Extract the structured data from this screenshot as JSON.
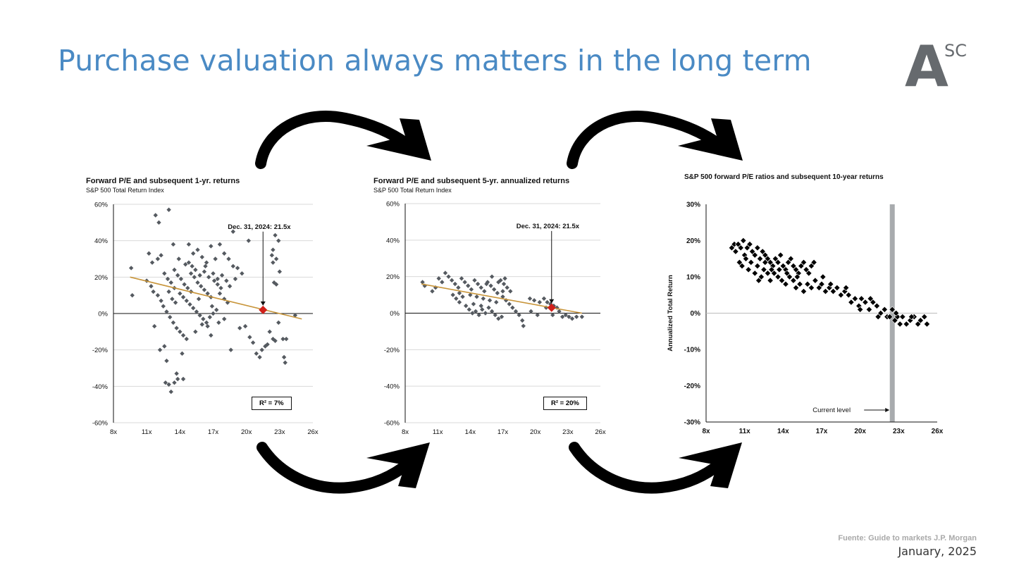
{
  "slide": {
    "title": "Purchase valuation always matters in the long term",
    "logo_letter": "A",
    "logo_superscript": "SC",
    "source": "Fuente: Guide to markets J.P. Morgan",
    "date": "January, 2025",
    "colors": {
      "title": "#4a8ac4",
      "logo": "#666a6e",
      "points_grey": "#555a60",
      "regression": "#c8953a",
      "highlight": "#d0201a",
      "current_band": "#a8abae"
    }
  },
  "chart_data": [
    {
      "type": "scatter",
      "title": "Forward P/E and subsequent 1-yr. returns",
      "subtitle": "S&P 500 Total Return Index",
      "xlabel": "",
      "ylabel": "",
      "x_ticks": [
        "8x",
        "11x",
        "14x",
        "17x",
        "20x",
        "23x",
        "26x"
      ],
      "y_ticks": [
        "60%",
        "40%",
        "20%",
        "0%",
        "-20%",
        "-40%",
        "-60%"
      ],
      "xlim": [
        8,
        26
      ],
      "ylim": [
        -60,
        60
      ],
      "grid": true,
      "regression": {
        "x": [
          9.5,
          25.0
        ],
        "y": [
          20,
          -3
        ]
      },
      "highlight": {
        "x": 21.5,
        "y": 2,
        "label": "Dec. 31, 2024:  21.5x"
      },
      "r_squared": "R²  = 7%",
      "points": [
        [
          9.6,
          25
        ],
        [
          9.7,
          10
        ],
        [
          11.0,
          18
        ],
        [
          11.2,
          33
        ],
        [
          11.5,
          28
        ],
        [
          11.8,
          54
        ],
        [
          12.1,
          50
        ],
        [
          12.3,
          32
        ],
        [
          12.0,
          30
        ],
        [
          11.4,
          15
        ],
        [
          11.7,
          -7
        ],
        [
          12.2,
          -20
        ],
        [
          12.6,
          -18
        ],
        [
          12.8,
          -26
        ],
        [
          12.7,
          -38
        ],
        [
          13.0,
          -39
        ],
        [
          13.2,
          -43
        ],
        [
          13.5,
          -38
        ],
        [
          13.7,
          -33
        ],
        [
          13.8,
          -36
        ],
        [
          14.2,
          -22
        ],
        [
          14.3,
          -36
        ],
        [
          13.0,
          57
        ],
        [
          13.4,
          38
        ],
        [
          13.9,
          30
        ],
        [
          14.5,
          27
        ],
        [
          14.8,
          38
        ],
        [
          15.2,
          33
        ],
        [
          15.6,
          35
        ],
        [
          16.0,
          31
        ],
        [
          16.4,
          28
        ],
        [
          16.8,
          37
        ],
        [
          17.2,
          30
        ],
        [
          17.6,
          38
        ],
        [
          18.0,
          33
        ],
        [
          18.4,
          30
        ],
        [
          18.8,
          26
        ],
        [
          19.2,
          25
        ],
        [
          19.6,
          22
        ],
        [
          18.8,
          45
        ],
        [
          18.6,
          -20
        ],
        [
          19.4,
          -8
        ],
        [
          19.9,
          -7
        ],
        [
          20.2,
          40
        ],
        [
          20.3,
          -13
        ],
        [
          20.6,
          -16
        ],
        [
          20.9,
          -22
        ],
        [
          21.2,
          -24
        ],
        [
          21.4,
          -20
        ],
        [
          21.7,
          -18
        ],
        [
          21.9,
          -17
        ],
        [
          22.1,
          -10
        ],
        [
          22.4,
          -14
        ],
        [
          22.6,
          -15
        ],
        [
          22.9,
          -5
        ],
        [
          23.3,
          -14
        ],
        [
          23.6,
          -14
        ],
        [
          23.5,
          -27
        ],
        [
          23.4,
          -24
        ],
        [
          22.3,
          32
        ],
        [
          22.4,
          28
        ],
        [
          22.6,
          43
        ],
        [
          22.9,
          40
        ],
        [
          22.5,
          17
        ],
        [
          22.7,
          30
        ],
        [
          23.0,
          23
        ],
        [
          22.7,
          16
        ],
        [
          22.4,
          35
        ],
        [
          24.4,
          -1
        ],
        [
          12.6,
          22
        ],
        [
          12.9,
          19
        ],
        [
          13.2,
          17
        ],
        [
          13.5,
          24
        ],
        [
          13.8,
          21
        ],
        [
          14.1,
          19
        ],
        [
          14.4,
          16
        ],
        [
          14.7,
          14
        ],
        [
          15.0,
          12
        ],
        [
          15.3,
          20
        ],
        [
          15.6,
          17
        ],
        [
          15.9,
          15
        ],
        [
          16.2,
          13
        ],
        [
          16.5,
          11
        ],
        [
          16.8,
          9
        ],
        [
          17.1,
          18
        ],
        [
          17.4,
          16
        ],
        [
          17.7,
          14
        ],
        [
          18.0,
          8
        ],
        [
          18.3,
          6
        ],
        [
          14.0,
          11
        ],
        [
          14.3,
          9
        ],
        [
          14.6,
          7
        ],
        [
          14.9,
          5
        ],
        [
          15.2,
          3
        ],
        [
          15.5,
          1
        ],
        [
          15.8,
          -1
        ],
        [
          16.1,
          -3
        ],
        [
          16.4,
          -5
        ],
        [
          16.7,
          -2
        ],
        [
          17.0,
          0
        ],
        [
          17.3,
          2
        ],
        [
          13.3,
          8
        ],
        [
          13.6,
          6
        ],
        [
          12.5,
          4
        ],
        [
          12.8,
          1
        ],
        [
          13.1,
          -2
        ],
        [
          13.4,
          -5
        ],
        [
          13.7,
          -8
        ],
        [
          14.0,
          -10
        ],
        [
          14.3,
          -12
        ],
        [
          16.0,
          -6
        ],
        [
          16.5,
          -7
        ],
        [
          17.5,
          -5
        ],
        [
          18.0,
          -3
        ],
        [
          15.0,
          22
        ],
        [
          15.4,
          24
        ],
        [
          15.8,
          21
        ],
        [
          16.2,
          23
        ],
        [
          16.6,
          20
        ],
        [
          17.0,
          22
        ],
        [
          17.4,
          19
        ],
        [
          17.8,
          21
        ],
        [
          18.2,
          18
        ],
        [
          12.0,
          10
        ],
        [
          12.3,
          7
        ],
        [
          11.6,
          12
        ],
        [
          14.8,
          28
        ],
        [
          15.1,
          26
        ],
        [
          16.3,
          26
        ],
        [
          13.0,
          12
        ],
        [
          13.5,
          14
        ],
        [
          15.7,
          8
        ],
        [
          16.9,
          4
        ],
        [
          17.6,
          11
        ],
        [
          18.5,
          15
        ],
        [
          19.0,
          19
        ],
        [
          15.4,
          -10
        ],
        [
          16.8,
          -12
        ],
        [
          14.6,
          -14
        ]
      ]
    },
    {
      "type": "scatter",
      "title": "Forward P/E and subsequent 5-yr. annualized returns",
      "subtitle": "S&P 500 Total Return Index",
      "xlabel": "",
      "ylabel": "",
      "x_ticks": [
        "8x",
        "11x",
        "14x",
        "17x",
        "20x",
        "23x",
        "26x"
      ],
      "y_ticks": [
        "60%",
        "40%",
        "20%",
        "0%",
        "-20%",
        "-40%",
        "-60%"
      ],
      "xlim": [
        8,
        26
      ],
      "ylim": [
        -60,
        60
      ],
      "grid": true,
      "regression": {
        "x": [
          9.5,
          24.3
        ],
        "y": [
          16,
          0
        ]
      },
      "highlight": {
        "x": 21.5,
        "y": 3,
        "label": "Dec. 31, 2024:  21.5x"
      },
      "r_squared": "R²  = 20%",
      "points": [
        [
          9.6,
          17
        ],
        [
          9.8,
          15
        ],
        [
          10.5,
          12
        ],
        [
          10.8,
          14
        ],
        [
          11.1,
          19
        ],
        [
          11.4,
          17
        ],
        [
          11.7,
          22
        ],
        [
          12.0,
          20
        ],
        [
          12.3,
          18
        ],
        [
          12.6,
          16
        ],
        [
          12.9,
          14
        ],
        [
          13.2,
          19
        ],
        [
          13.5,
          17
        ],
        [
          13.8,
          15
        ],
        [
          14.1,
          13
        ],
        [
          14.4,
          18
        ],
        [
          14.7,
          16
        ],
        [
          15.0,
          14
        ],
        [
          15.3,
          12
        ],
        [
          15.6,
          17
        ],
        [
          15.9,
          15
        ],
        [
          16.2,
          13
        ],
        [
          16.5,
          11
        ],
        [
          16.8,
          18
        ],
        [
          17.1,
          16
        ],
        [
          17.4,
          14
        ],
        [
          17.7,
          12
        ],
        [
          17.0,
          9
        ],
        [
          17.3,
          7
        ],
        [
          17.6,
          5
        ],
        [
          17.9,
          3
        ],
        [
          18.2,
          1
        ],
        [
          18.5,
          -1
        ],
        [
          18.8,
          -4
        ],
        [
          18.9,
          -7
        ],
        [
          13.6,
          4
        ],
        [
          13.9,
          2
        ],
        [
          14.2,
          0
        ],
        [
          14.5,
          1
        ],
        [
          14.8,
          -1
        ],
        [
          15.1,
          2
        ],
        [
          15.4,
          0
        ],
        [
          15.7,
          3
        ],
        [
          16.0,
          1
        ],
        [
          16.3,
          -1
        ],
        [
          16.6,
          -3
        ],
        [
          16.9,
          -2
        ],
        [
          12.4,
          10
        ],
        [
          12.7,
          8
        ],
        [
          13.0,
          11
        ],
        [
          13.3,
          9
        ],
        [
          14.0,
          10
        ],
        [
          14.6,
          9
        ],
        [
          15.2,
          8
        ],
        [
          15.8,
          7
        ],
        [
          16.4,
          6
        ],
        [
          17.0,
          12
        ],
        [
          17.2,
          19
        ],
        [
          16.6,
          17
        ],
        [
          16.0,
          20
        ],
        [
          15.5,
          16
        ],
        [
          19.5,
          8
        ],
        [
          19.9,
          7
        ],
        [
          20.4,
          6
        ],
        [
          20.8,
          8
        ],
        [
          21.1,
          6
        ],
        [
          21.4,
          5
        ],
        [
          21.7,
          4
        ],
        [
          22.0,
          3
        ],
        [
          22.2,
          1
        ],
        [
          21.6,
          -1
        ],
        [
          22.5,
          -2
        ],
        [
          22.8,
          -1
        ],
        [
          23.1,
          -2
        ],
        [
          23.4,
          -3
        ],
        [
          23.8,
          -2
        ],
        [
          24.3,
          -2
        ],
        [
          19.6,
          1
        ],
        [
          20.2,
          -1
        ],
        [
          21.0,
          3
        ],
        [
          13.0,
          6
        ],
        [
          14.3,
          5
        ],
        [
          15.0,
          4
        ]
      ]
    },
    {
      "type": "scatter",
      "title": "S&P 500 forward P/E ratios and subsequent 10-year returns",
      "subtitle": "",
      "xlabel": "",
      "ylabel": "Annualized Total Return",
      "x_ticks": [
        "8x",
        "11x",
        "14x",
        "17x",
        "20x",
        "23x",
        "26x"
      ],
      "y_ticks": [
        "30%",
        "20%",
        "10%",
        "0%",
        "-10%",
        "-20%",
        "-30%"
      ],
      "xlim": [
        8,
        26
      ],
      "ylim": [
        -30,
        30
      ],
      "grid": false,
      "current_level": {
        "x": 22.5,
        "label": "Current level"
      },
      "points": [
        [
          10.0,
          18
        ],
        [
          10.2,
          19
        ],
        [
          10.3,
          17
        ],
        [
          10.5,
          19
        ],
        [
          10.7,
          18
        ],
        [
          10.9,
          20
        ],
        [
          11.0,
          16
        ],
        [
          11.2,
          18
        ],
        [
          11.4,
          19
        ],
        [
          11.6,
          17
        ],
        [
          11.8,
          16
        ],
        [
          12.0,
          18
        ],
        [
          12.2,
          15
        ],
        [
          12.4,
          17
        ],
        [
          12.6,
          16
        ],
        [
          12.8,
          15
        ],
        [
          13.0,
          14
        ],
        [
          13.2,
          13
        ],
        [
          13.4,
          15
        ],
        [
          13.6,
          14
        ],
        [
          13.8,
          16
        ],
        [
          14.0,
          13
        ],
        [
          14.2,
          12
        ],
        [
          14.4,
          14
        ],
        [
          14.6,
          15
        ],
        [
          14.8,
          13
        ],
        [
          15.0,
          12
        ],
        [
          15.2,
          11
        ],
        [
          15.4,
          13
        ],
        [
          15.6,
          14
        ],
        [
          15.8,
          12
        ],
        [
          16.0,
          11
        ],
        [
          16.2,
          13
        ],
        [
          16.4,
          14
        ],
        [
          10.6,
          14
        ],
        [
          10.8,
          13
        ],
        [
          11.1,
          15
        ],
        [
          11.3,
          12
        ],
        [
          11.5,
          14
        ],
        [
          11.8,
          11
        ],
        [
          12.0,
          13
        ],
        [
          12.3,
          10
        ],
        [
          12.5,
          12
        ],
        [
          12.8,
          11
        ],
        [
          13.0,
          9
        ],
        [
          13.3,
          11
        ],
        [
          13.6,
          10
        ],
        [
          13.9,
          9
        ],
        [
          14.2,
          8
        ],
        [
          14.5,
          10
        ],
        [
          14.8,
          9
        ],
        [
          15.0,
          7
        ],
        [
          15.3,
          8
        ],
        [
          15.6,
          6
        ],
        [
          15.9,
          8
        ],
        [
          16.2,
          7
        ],
        [
          16.5,
          9
        ],
        [
          16.8,
          7
        ],
        [
          17.0,
          8
        ],
        [
          17.3,
          6
        ],
        [
          17.6,
          7
        ],
        [
          17.9,
          6
        ],
        [
          18.2,
          7
        ],
        [
          18.5,
          5
        ],
        [
          18.8,
          6
        ],
        [
          19.1,
          5
        ],
        [
          19.3,
          3
        ],
        [
          19.6,
          4
        ],
        [
          19.9,
          2
        ],
        [
          20.1,
          4
        ],
        [
          20.4,
          3
        ],
        [
          20.7,
          1
        ],
        [
          21.0,
          3
        ],
        [
          21.3,
          2
        ],
        [
          21.6,
          0
        ],
        [
          21.9,
          1
        ],
        [
          22.1,
          -1
        ],
        [
          22.3,
          -1
        ],
        [
          22.5,
          1
        ],
        [
          22.7,
          -2
        ],
        [
          22.9,
          -1
        ],
        [
          23.1,
          -3
        ],
        [
          23.3,
          -1
        ],
        [
          23.6,
          -3
        ],
        [
          23.9,
          -2
        ],
        [
          24.2,
          -1
        ],
        [
          24.5,
          -3
        ],
        [
          24.7,
          -2
        ],
        [
          25.0,
          -1
        ],
        [
          25.2,
          -3
        ],
        [
          12.1,
          9
        ],
        [
          12.6,
          14
        ],
        [
          13.1,
          12
        ],
        [
          13.7,
          12
        ],
        [
          14.3,
          11
        ],
        [
          15.1,
          10
        ],
        [
          17.1,
          10
        ],
        [
          17.7,
          8
        ],
        [
          18.9,
          7
        ],
        [
          20.0,
          1
        ],
        [
          20.8,
          4
        ],
        [
          21.4,
          -1
        ],
        [
          22.8,
          0
        ],
        [
          24.0,
          -1
        ]
      ]
    }
  ]
}
